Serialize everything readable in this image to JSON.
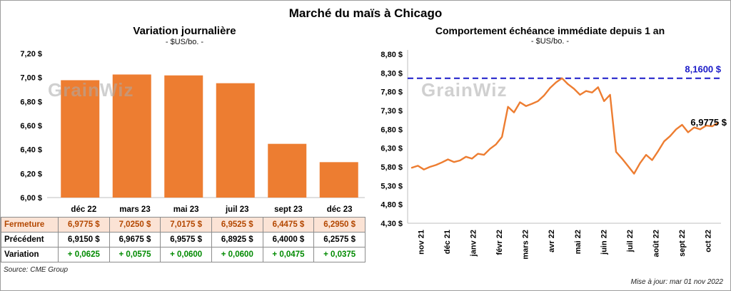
{
  "page": {
    "title": "Marché du maïs à Chicago",
    "source": "Source: CME Group",
    "updated": "Mise à jour: mar 01 nov 2022",
    "watermark": "GrainWiz"
  },
  "colors": {
    "accent_orange": "#ED7D31",
    "reference_blue": "#1A1AC8",
    "variation_green": "#008A00",
    "fermeture_bg": "#FBE3D5",
    "fermeture_text": "#B34700",
    "axis_gray": "#BFBFBF"
  },
  "chart_data": [
    {
      "type": "bar",
      "title": "Variation journalière",
      "subtitle": "- $US/bo. -",
      "categories": [
        "déc 22",
        "mars 23",
        "mai 23",
        "juil 23",
        "sept 23",
        "déc 23"
      ],
      "values": [
        6.9775,
        7.025,
        7.0175,
        6.9525,
        6.4475,
        6.295
      ],
      "ylim": [
        6.0,
        7.2
      ],
      "ytick_step": 0.2,
      "ytick_labels": [
        "6,00 $",
        "6,20 $",
        "6,40 $",
        "6,60 $",
        "6,80 $",
        "7,00 $",
        "7,20 $"
      ],
      "grid": false,
      "legend": "none"
    },
    {
      "type": "line",
      "title": "Comportement échéance immédiate depuis 1 an",
      "subtitle": "- $US/bo. -",
      "x_labels": [
        "nov 21",
        "déc 21",
        "janv 22",
        "févr 22",
        "mars 22",
        "avr 22",
        "mai 22",
        "juin 22",
        "juil 22",
        "août 22",
        "sept 22",
        "oct 22"
      ],
      "values": [
        5.78,
        5.83,
        5.73,
        5.8,
        5.85,
        5.92,
        6.0,
        5.93,
        5.97,
        6.07,
        6.02,
        6.15,
        6.12,
        6.28,
        6.4,
        6.6,
        7.4,
        7.25,
        7.52,
        7.42,
        7.48,
        7.55,
        7.7,
        7.9,
        8.05,
        8.16,
        8.0,
        7.88,
        7.72,
        7.82,
        7.78,
        7.92,
        7.55,
        7.72,
        6.2,
        6.02,
        5.82,
        5.62,
        5.9,
        6.12,
        5.98,
        6.22,
        6.48,
        6.62,
        6.8,
        6.92,
        6.72,
        6.85,
        6.8,
        6.9,
        6.88,
        6.9775
      ],
      "ylim": [
        4.3,
        8.8
      ],
      "ytick_step": 0.5,
      "ytick_labels": [
        "4,30 $",
        "4,80 $",
        "5,30 $",
        "5,80 $",
        "6,30 $",
        "6,80 $",
        "7,30 $",
        "7,80 $",
        "8,30 $",
        "8,80 $"
      ],
      "reference_line": {
        "value": 8.16,
        "label": "8,1600 $"
      },
      "last_label": "6,9775 $",
      "grid": false,
      "legend": "none"
    }
  ],
  "table": {
    "rows": [
      {
        "label": "Fermeture",
        "values": [
          "6,9775  $",
          "7,0250  $",
          "7,0175  $",
          "6,9525  $",
          "6,4475  $",
          "6,2950  $"
        ]
      },
      {
        "label": "Précédent",
        "values": [
          "6,9150  $",
          "6,9675  $",
          "6,9575  $",
          "6,8925  $",
          "6,4000  $",
          "6,2575  $"
        ]
      },
      {
        "label": "Variation",
        "values": [
          "+ 0,0625",
          "+ 0,0575",
          "+ 0,0600",
          "+ 0,0600",
          "+ 0,0475",
          "+ 0,0375"
        ]
      }
    ]
  }
}
